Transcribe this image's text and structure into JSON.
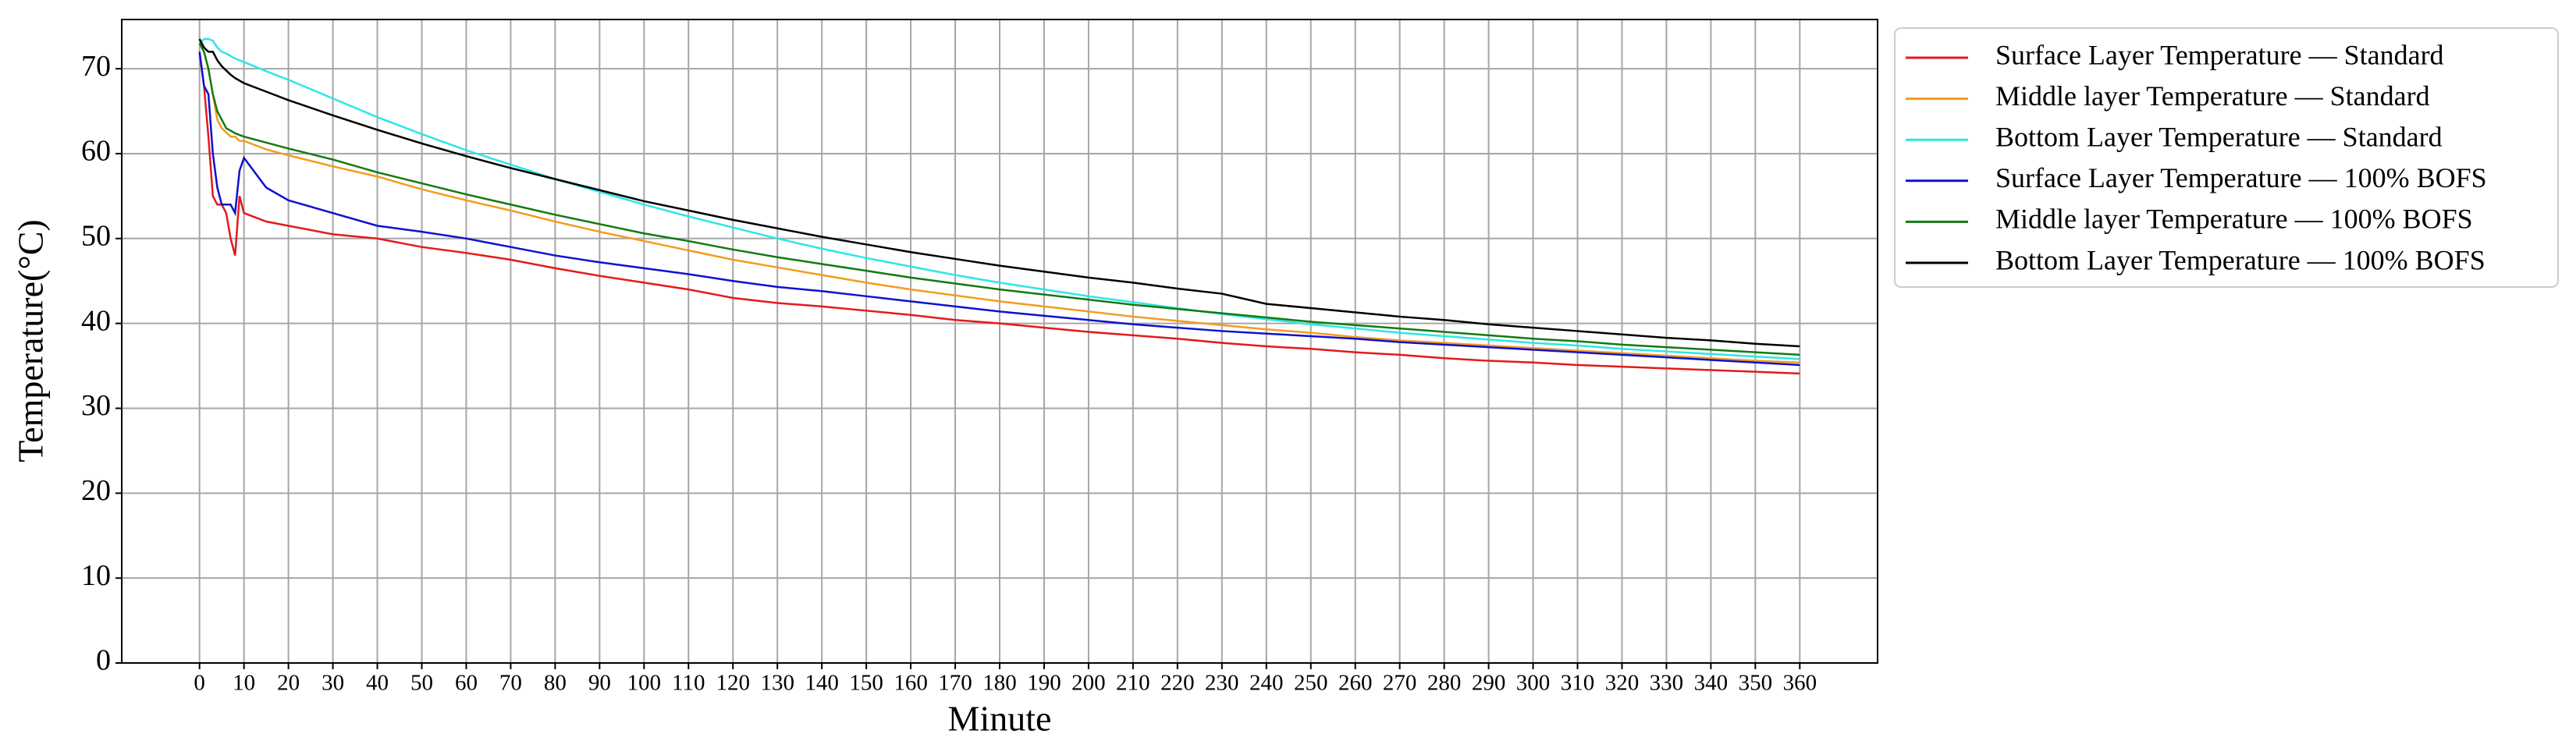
{
  "chart_data": {
    "type": "line",
    "xlabel": "Minute",
    "ylabel": "Temperature(°C)",
    "xlim": [
      -17.5,
      377.5
    ],
    "ylim": [
      0,
      75.8
    ],
    "xticks": [
      0,
      10,
      20,
      30,
      40,
      50,
      60,
      70,
      80,
      90,
      100,
      110,
      120,
      130,
      140,
      150,
      160,
      170,
      180,
      190,
      200,
      210,
      220,
      230,
      240,
      250,
      260,
      270,
      280,
      290,
      300,
      310,
      320,
      330,
      340,
      350,
      360
    ],
    "yticks": [
      0,
      10,
      20,
      30,
      40,
      50,
      60,
      70
    ],
    "grid": true,
    "legend": "outside-upper-right",
    "x": [
      0,
      1,
      2,
      3,
      4,
      5,
      6,
      7,
      8,
      9,
      10,
      15,
      20,
      30,
      40,
      50,
      60,
      70,
      80,
      90,
      100,
      110,
      120,
      130,
      140,
      150,
      160,
      170,
      180,
      190,
      200,
      210,
      220,
      230,
      240,
      250,
      260,
      270,
      280,
      290,
      300,
      310,
      320,
      330,
      340,
      350,
      360
    ],
    "series": [
      {
        "name": "Surface Layer Temperature — Standard",
        "color": "#e31a1c",
        "values": [
          72,
          68,
          62,
          55,
          54,
          54,
          53,
          50,
          48,
          55,
          53,
          52,
          51.5,
          50.5,
          50,
          49,
          48.3,
          47.5,
          46.5,
          45.6,
          44.8,
          44,
          43,
          42.4,
          42,
          41.5,
          41,
          40.4,
          40,
          39.5,
          39,
          38.6,
          38.2,
          37.7,
          37.3,
          37,
          36.6,
          36.3,
          35.9,
          35.6,
          35.4,
          35.1,
          34.9,
          34.7,
          34.5,
          34.3,
          34.1
        ]
      },
      {
        "name": "Middle layer Temperature — Standard",
        "color": "#f39c1f",
        "values": [
          73,
          72,
          70,
          67,
          64,
          63,
          62.5,
          62,
          62,
          61.5,
          61.5,
          60.5,
          59.8,
          58.5,
          57.3,
          55.8,
          54.5,
          53.3,
          52,
          50.8,
          49.7,
          48.6,
          47.5,
          46.6,
          45.7,
          44.8,
          44,
          43.3,
          42.6,
          42,
          41.4,
          40.8,
          40.3,
          39.8,
          39.3,
          38.9,
          38.4,
          38,
          37.7,
          37.4,
          37.1,
          36.8,
          36.5,
          36.2,
          35.9,
          35.6,
          35.4
        ]
      },
      {
        "name": "Bottom Layer Temperature — Standard",
        "color": "#2ee6e6",
        "values": [
          73,
          73.5,
          73.5,
          73.3,
          72.5,
          72,
          71.8,
          71.5,
          71.2,
          71,
          70.8,
          69.7,
          68.7,
          66.5,
          64.3,
          62.3,
          60.4,
          58.7,
          57,
          55.5,
          54,
          52.6,
          51.3,
          50,
          48.8,
          47.7,
          46.7,
          45.7,
          44.8,
          44,
          43.2,
          42.5,
          41.8,
          41.1,
          40.5,
          39.9,
          39.4,
          38.9,
          38.5,
          38.1,
          37.7,
          37.4,
          37,
          36.7,
          36.4,
          36.1,
          35.8
        ]
      },
      {
        "name": "Surface Layer Temperature — 100% BOFS",
        "color": "#1010d0",
        "values": [
          72,
          68,
          67,
          60,
          56,
          54,
          54,
          54,
          53,
          58,
          59.5,
          56,
          54.5,
          53,
          51.5,
          50.8,
          50,
          49,
          48,
          47.2,
          46.5,
          45.8,
          45,
          44.3,
          43.8,
          43.2,
          42.6,
          42,
          41.4,
          40.9,
          40.4,
          39.9,
          39.5,
          39.1,
          38.8,
          38.5,
          38.2,
          37.8,
          37.5,
          37.2,
          36.9,
          36.6,
          36.3,
          36,
          35.7,
          35.4,
          35.1
        ]
      },
      {
        "name": "Middle layer Temperature — 100% BOFS",
        "color": "#137a13",
        "values": [
          73,
          72,
          70,
          67,
          65,
          64,
          63,
          62.7,
          62.4,
          62.2,
          62,
          61.3,
          60.6,
          59.3,
          57.8,
          56.5,
          55.2,
          54,
          52.8,
          51.7,
          50.6,
          49.7,
          48.7,
          47.8,
          47,
          46.2,
          45.4,
          44.7,
          44,
          43.4,
          42.8,
          42.2,
          41.7,
          41.2,
          40.7,
          40.2,
          39.8,
          39.4,
          39,
          38.6,
          38.2,
          37.9,
          37.5,
          37.2,
          36.9,
          36.6,
          36.3
        ]
      },
      {
        "name": "Bottom Layer Temperature — 100% BOFS",
        "color": "#000000",
        "values": [
          73.5,
          72.5,
          72,
          72,
          71,
          70.3,
          69.8,
          69.3,
          68.9,
          68.6,
          68.3,
          67.3,
          66.3,
          64.5,
          62.8,
          61.2,
          59.7,
          58.3,
          57,
          55.7,
          54.4,
          53.3,
          52.2,
          51.2,
          50.2,
          49.3,
          48.4,
          47.6,
          46.8,
          46.1,
          45.4,
          44.8,
          44.1,
          43.5,
          42.3,
          41.8,
          41.3,
          40.8,
          40.4,
          39.9,
          39.5,
          39.1,
          38.7,
          38.3,
          38,
          37.6,
          37.3
        ]
      }
    ]
  }
}
